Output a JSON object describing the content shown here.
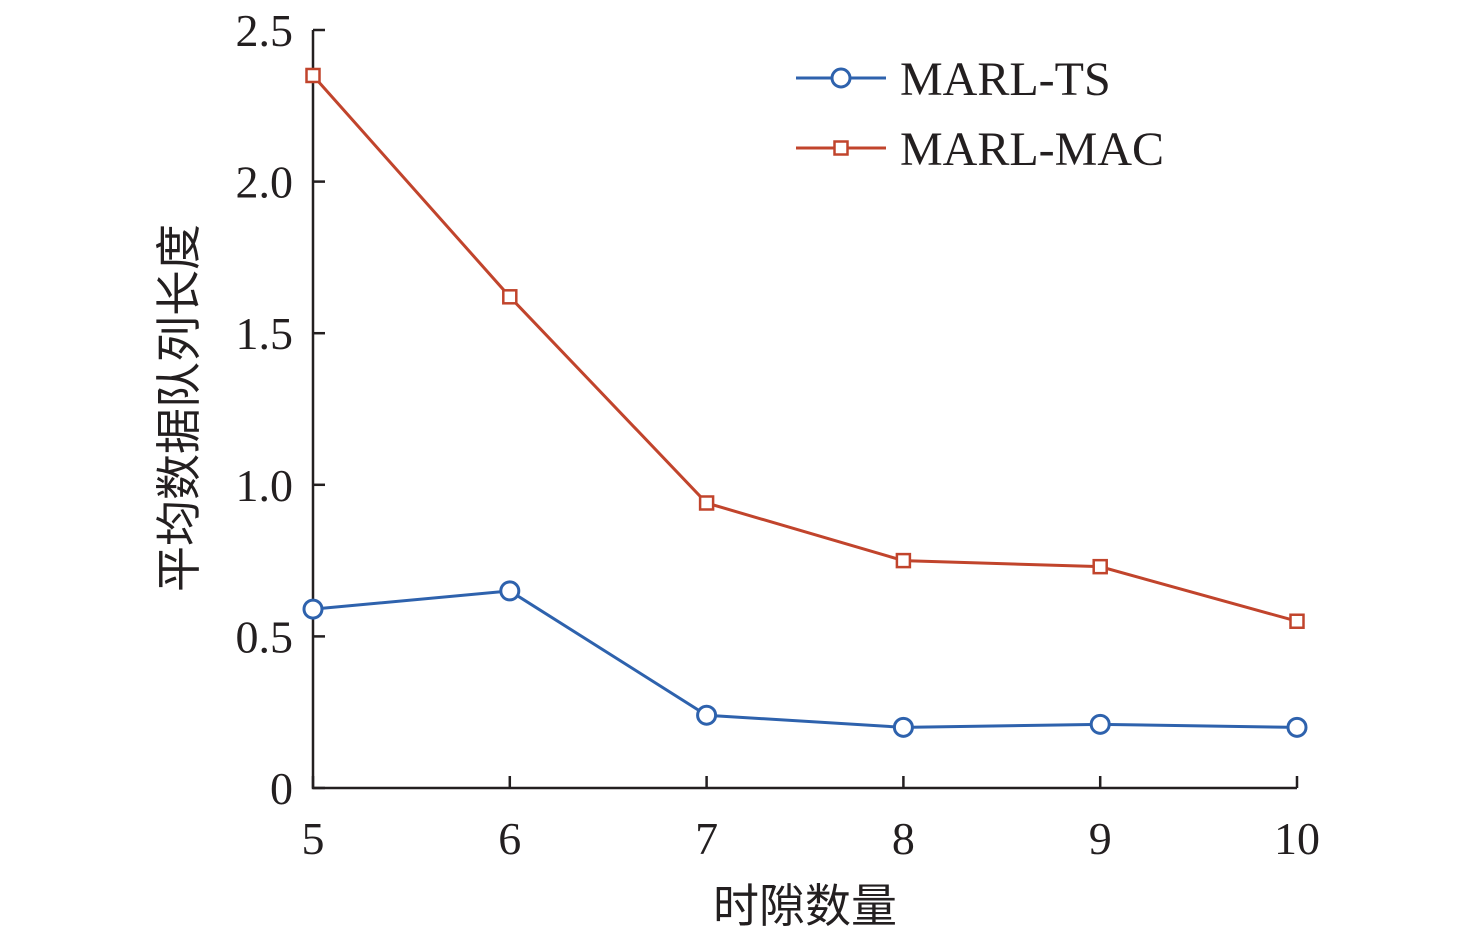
{
  "chart_data": {
    "type": "line",
    "title": "",
    "xlabel": "时隙数量",
    "ylabel": "平均数据队列长度",
    "x": [
      5,
      6,
      7,
      8,
      9,
      10
    ],
    "xlim": [
      5,
      10
    ],
    "ylim": [
      0,
      2.5
    ],
    "x_ticks": [
      "5",
      "6",
      "7",
      "8",
      "9",
      "10"
    ],
    "y_ticks": [
      "0",
      "0.5",
      "1.0",
      "1.5",
      "2.0",
      "2.5"
    ],
    "y_tick_values": [
      0,
      0.5,
      1.0,
      1.5,
      2.0,
      2.5
    ],
    "grid": false,
    "legend_position": "top-right",
    "series": [
      {
        "name": "MARL-TS",
        "marker": "circle",
        "color": "#2e62ad",
        "values": [
          0.59,
          0.65,
          0.24,
          0.2,
          0.21,
          0.2
        ]
      },
      {
        "name": "MARL-MAC",
        "marker": "square",
        "color": "#c1442c",
        "values": [
          2.35,
          1.62,
          0.94,
          0.75,
          0.73,
          0.55
        ]
      }
    ]
  }
}
